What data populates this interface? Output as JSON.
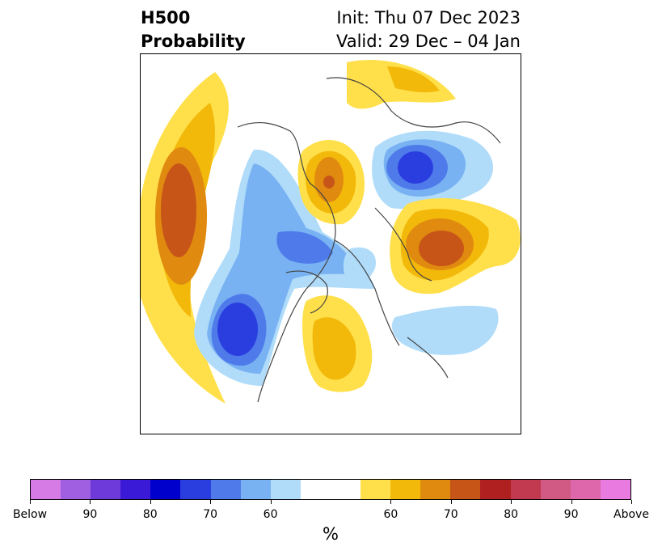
{
  "title": {
    "variable": "H500",
    "product": "Probability",
    "init": "Init: Thu 07 Dec 2023",
    "valid": "Valid: 29 Dec – 04 Jan"
  },
  "colorbar": {
    "unit": "%",
    "colors": [
      "#d67be6",
      "#a05ee0",
      "#6f3ada",
      "#3a1ad6",
      "#0000cc",
      "#2a3ee0",
      "#4f7aea",
      "#78b2f2",
      "#b0dcfa",
      "#ffffff",
      "#ffe04a",
      "#f2b90a",
      "#e08a10",
      "#c85518",
      "#b02020",
      "#c23a50",
      "#d05a84",
      "#de66aa",
      "#e87ae0"
    ],
    "tick_labels": [
      "Below",
      "90",
      "80",
      "70",
      "60",
      "60",
      "70",
      "80",
      "90",
      "Above"
    ]
  },
  "map": {
    "region": "North America / Arctic",
    "projection": "polar stereographic"
  }
}
